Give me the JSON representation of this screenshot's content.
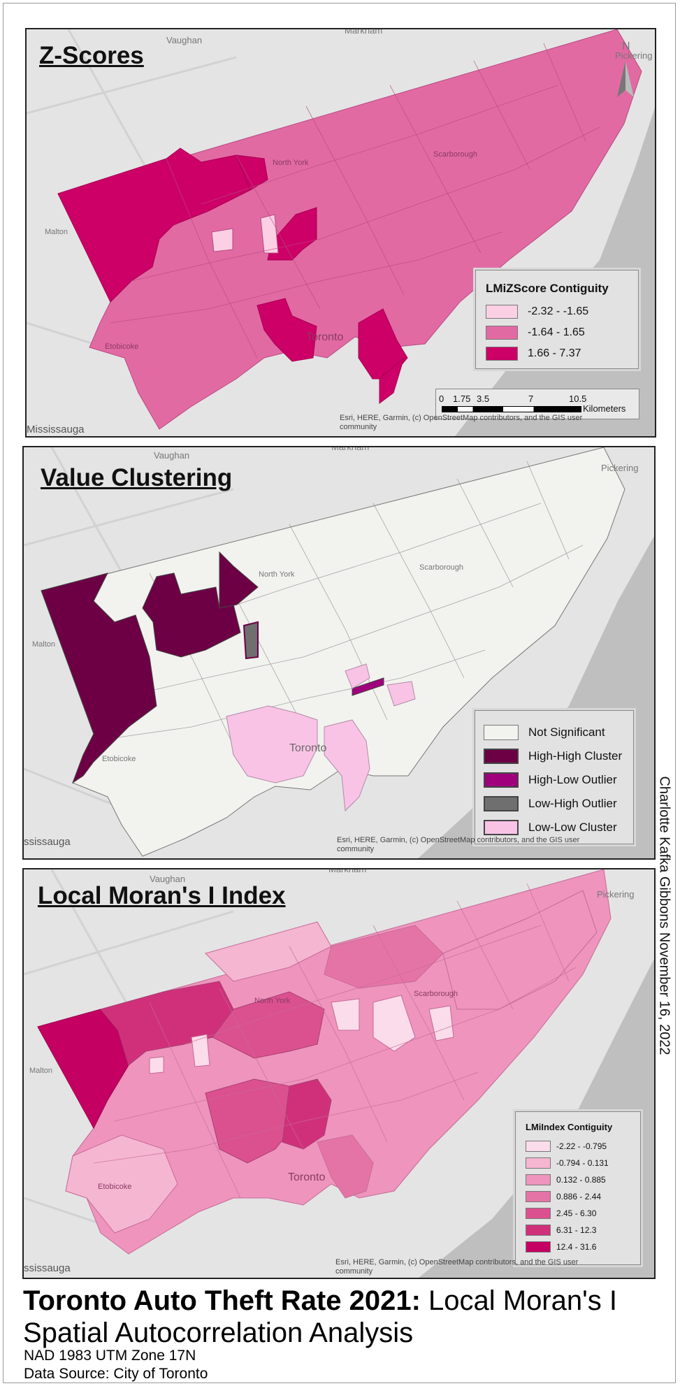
{
  "maps": {
    "zscores": {
      "title": "Z-Scores",
      "legend_title": "LMiZScore Contiguity",
      "legend": [
        {
          "label": "-2.32 - -1.65",
          "color": "#fbd0e4"
        },
        {
          "label": "-1.64 - 1.65",
          "color": "#e26aa3"
        },
        {
          "label": "1.66 - 7.37",
          "color": "#cc0066"
        }
      ],
      "places": {
        "vaughan": "Vaughan",
        "markham": "Markham",
        "pickering": "Pickering",
        "malton": "Malton",
        "north_york": "North York",
        "scarborough": "Scarborough",
        "etobicoke": "Etobicoke",
        "toronto": "Toronto",
        "mississauga": "Mississauga"
      },
      "scale": {
        "ticks": [
          "0",
          "1.75",
          "3.5",
          "7",
          "10.5"
        ],
        "unit": "Kilometers"
      },
      "north": "N",
      "attribution_1": "Esri, HERE, Garmin, (c) OpenStreetMap contributors, and the GIS user",
      "attribution_2": "community"
    },
    "clustering": {
      "title": "Value Clustering",
      "legend": [
        {
          "label": "Not Significant",
          "color": "#f2f2ef"
        },
        {
          "label": "High-High Cluster",
          "color": "#6d0045"
        },
        {
          "label": "High-Low Outlier",
          "color": "#a1007c"
        },
        {
          "label": "Low-High Outlier",
          "color": "#6f6f6f"
        },
        {
          "label": "Low-Low Cluster",
          "color": "#f9c3e6"
        }
      ],
      "places": {
        "vaughan": "Vaughan",
        "markham": "Markham",
        "pickering": "Pickering",
        "malton": "Malton",
        "north_york": "North York",
        "scarborough": "Scarborough",
        "etobicoke": "Etobicoke",
        "toronto": "Toronto",
        "mississauga": "ssissauga"
      },
      "attribution_1": "Esri, HERE, Garmin, (c) OpenStreetMap contributors, and the GIS user",
      "attribution_2": "community"
    },
    "moran": {
      "title": "Local Moran's I Index",
      "legend_title": "LMiIndex Contiguity",
      "legend": [
        {
          "label": "-2.22 - -0.795",
          "color": "#fbdcea"
        },
        {
          "label": "-0.794 - 0.131",
          "color": "#f5b6d2"
        },
        {
          "label": "0.132 - 0.885",
          "color": "#ee94bd"
        },
        {
          "label": "0.886 - 2.44",
          "color": "#e574a6"
        },
        {
          "label": "2.45 - 6.30",
          "color": "#db5190"
        },
        {
          "label": "6.31 - 12.3",
          "color": "#d0307a"
        },
        {
          "label": "12.4 - 31.6",
          "color": "#c40062"
        }
      ],
      "places": {
        "vaughan": "Vaughan",
        "markham": "Markham",
        "pickering": "Pickering",
        "malton": "Malton",
        "north_york": "North York",
        "scarborough": "Scarborough",
        "etobicoke": "Etobicoke",
        "toronto": "Toronto",
        "mississauga": "ssissauga"
      },
      "attribution_1": "Esri, HERE, Garmin, (c) OpenStreetMap contributors, and the GIS user",
      "attribution_2": "community"
    }
  },
  "footer": {
    "title_bold": "Toronto Auto Theft Rate 2021:",
    "title_rest": " Local Moran's I Spatial Autocorrelation Analysis",
    "projection": "NAD 1983 UTM Zone 17N",
    "source": "Data Source: City of Toronto"
  },
  "author": "Charlotte Kafka Gibbons November 16, 2022"
}
